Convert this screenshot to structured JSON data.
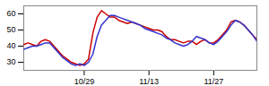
{
  "chart_data": {
    "type": "line",
    "categories": [
      null,
      null,
      null,
      null,
      null,
      null,
      null,
      null,
      null,
      null,
      null,
      null,
      null,
      null,
      "10/29",
      null,
      null,
      null,
      null,
      null,
      null,
      null,
      null,
      null,
      null,
      null,
      null,
      null,
      null,
      "11/13",
      null,
      null,
      null,
      null,
      null,
      null,
      null,
      null,
      null,
      null,
      null,
      null,
      null,
      null,
      "11/27",
      null,
      null,
      null,
      null,
      null,
      null,
      null,
      null,
      null,
      null
    ],
    "series": [
      {
        "color": "#cc0000",
        "values": [
          41,
          42,
          41,
          40,
          43,
          44,
          43,
          40,
          37,
          34,
          32,
          30,
          29,
          28,
          29,
          32,
          48,
          58,
          62,
          60,
          58,
          58,
          56,
          55,
          54,
          55,
          54,
          53,
          52,
          51,
          50,
          50,
          49,
          46,
          44,
          44,
          43,
          42,
          43,
          43,
          41,
          43,
          44,
          42,
          42,
          44,
          47,
          50,
          55,
          56,
          55,
          53,
          50,
          47,
          44
        ]
      },
      {
        "color": "#3333cc",
        "values": [
          38,
          39,
          40,
          40,
          41,
          42,
          42,
          39,
          36,
          33,
          31,
          29,
          28,
          29,
          28,
          30,
          35,
          46,
          53,
          56,
          59,
          59,
          58,
          57,
          56,
          55,
          54,
          53,
          51,
          50,
          49,
          48,
          47,
          45,
          44,
          42,
          41,
          40,
          41,
          43,
          46,
          45,
          44,
          42,
          41,
          43,
          46,
          49,
          53,
          56,
          55,
          53,
          50,
          47,
          43
        ]
      }
    ],
    "ylim": [
      25,
      65
    ],
    "yticks": [
      30,
      40,
      50,
      60
    ],
    "grid": false
  }
}
